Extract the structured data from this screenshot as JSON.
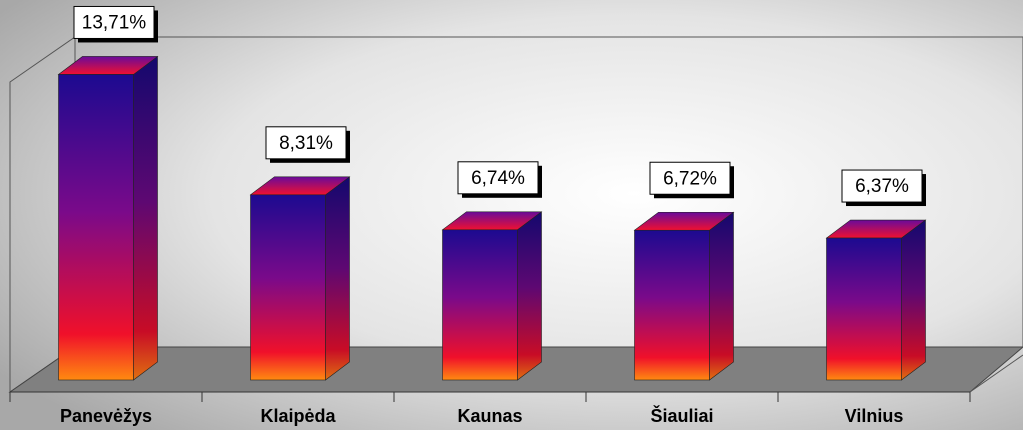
{
  "chart_data": {
    "type": "bar3d",
    "categories": [
      "Panevėžys",
      "Klaipėda",
      "Kaunas",
      "Šiauliai",
      "Vilnius"
    ],
    "values": [
      13.71,
      8.31,
      6.74,
      6.72,
      6.37
    ],
    "value_labels": [
      "13,71%",
      "8,31%",
      "6,74%",
      "6,72%",
      "6,37%"
    ],
    "ylim": [
      0,
      14
    ]
  }
}
